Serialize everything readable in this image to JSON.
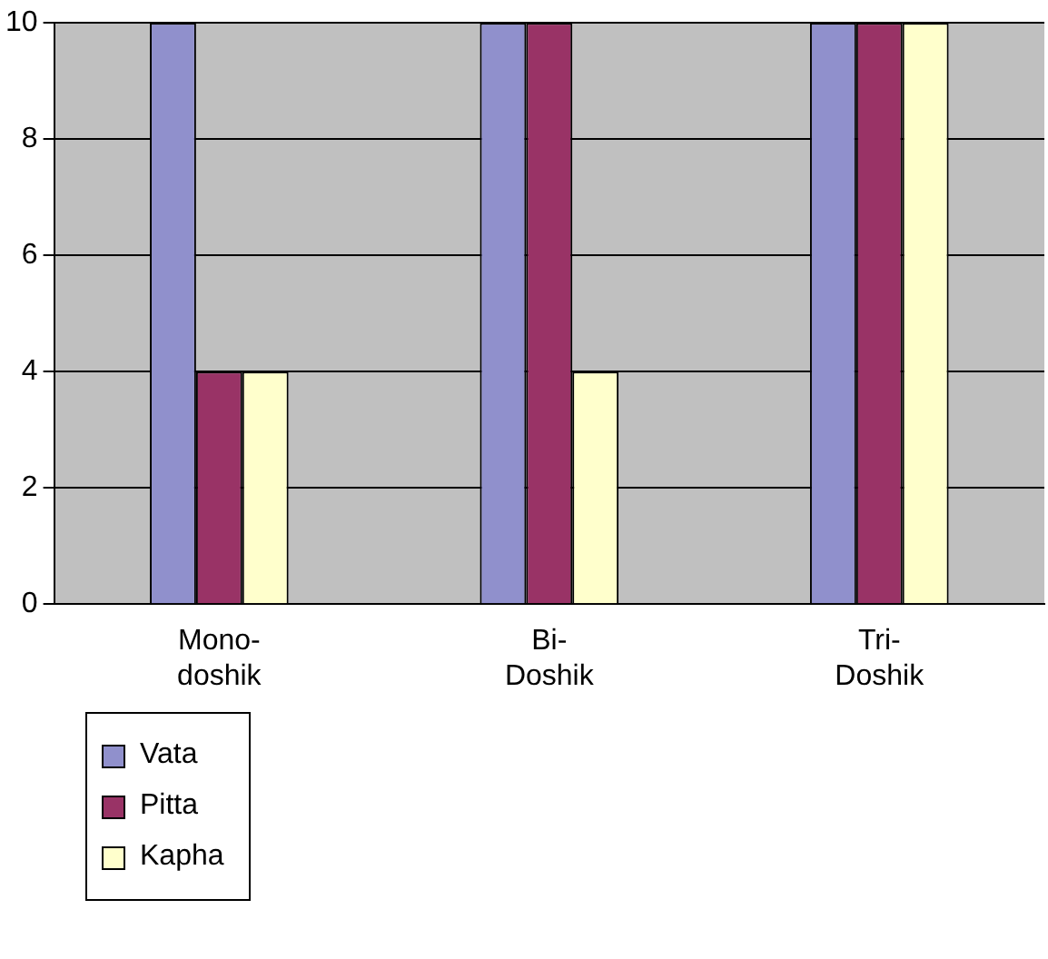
{
  "chart_data": {
    "type": "bar",
    "categories": [
      "Mono-doshik",
      "Bi-Doshik",
      "Tri-Doshik"
    ],
    "series": [
      {
        "name": "Vata",
        "color": "#9090cc",
        "values": [
          10,
          10,
          10
        ]
      },
      {
        "name": "Pitta",
        "color": "#993366",
        "values": [
          4,
          10,
          10
        ]
      },
      {
        "name": "Kapha",
        "color": "#ffffcc",
        "values": [
          4,
          4,
          10
        ]
      }
    ],
    "ylim": [
      0,
      10
    ],
    "yticks": [
      0,
      2,
      4,
      6,
      8,
      10
    ],
    "grid": "y",
    "legend": "bottom left"
  }
}
